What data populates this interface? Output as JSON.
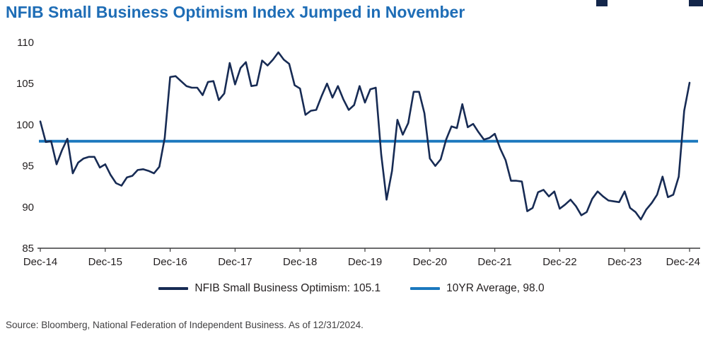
{
  "colors": {
    "title": "#1E6DB6",
    "series_line": "#172B54",
    "average_line": "#1B78BE",
    "axis": "#3A3A3C",
    "axis_text": "#231F20",
    "decor": "#13264A",
    "source_text": "#414042"
  },
  "legend": [
    {
      "label": "NFIB Small Business Optimism: 105.1",
      "color": "#172B54"
    },
    {
      "label": "10YR Average, 98.0",
      "color": "#1B78BE"
    }
  ],
  "source": "Source: Bloomberg, National Federation of Independent Business. As of 12/31/2024.",
  "chart_data": {
    "type": "line",
    "title": "NFIB Small Business Optimism Index Jumped in November",
    "xlabel": "",
    "ylabel": "",
    "ylim": [
      85,
      110
    ],
    "y_ticks": [
      85,
      90,
      95,
      100,
      105,
      110
    ],
    "x_tick_labels": [
      "Dec-14",
      "Dec-15",
      "Dec-16",
      "Dec-17",
      "Dec-18",
      "Dec-19",
      "Dec-20",
      "Dec-21",
      "Dec-22",
      "Dec-23",
      "Dec-24"
    ],
    "x_tick_interval": 12,
    "grid": false,
    "legend_position": "bottom",
    "series": [
      {
        "name": "NFIB Small Business Optimism",
        "current_value": 105.1,
        "color": "#172B54",
        "width": 2.6,
        "x_start": "Dec-14",
        "x_end": "Dec-24",
        "frequency": "monthly",
        "values": [
          100.4,
          97.9,
          98.0,
          95.2,
          96.9,
          98.3,
          94.1,
          95.4,
          95.9,
          96.1,
          96.1,
          94.8,
          95.2,
          93.9,
          92.9,
          92.6,
          93.6,
          93.8,
          94.5,
          94.6,
          94.4,
          94.1,
          94.9,
          98.4,
          105.8,
          105.9,
          105.3,
          104.7,
          104.5,
          104.5,
          103.6,
          105.2,
          105.3,
          103.0,
          103.8,
          107.5,
          104.9,
          106.9,
          107.6,
          104.7,
          104.8,
          107.8,
          107.2,
          107.9,
          108.8,
          107.9,
          107.4,
          104.8,
          104.4,
          101.2,
          101.7,
          101.8,
          103.5,
          105.0,
          103.3,
          104.7,
          103.1,
          101.8,
          102.4,
          104.7,
          102.7,
          104.3,
          104.5,
          96.4,
          90.9,
          94.4,
          100.6,
          98.8,
          100.2,
          104.0,
          104.0,
          101.4,
          95.9,
          95.0,
          95.8,
          98.2,
          99.8,
          99.6,
          102.5,
          99.7,
          100.1,
          99.1,
          98.2,
          98.4,
          98.9,
          97.1,
          95.7,
          93.2,
          93.2,
          93.1,
          89.5,
          89.9,
          91.8,
          92.1,
          91.3,
          91.9,
          89.8,
          90.3,
          90.9,
          90.1,
          89.0,
          89.4,
          91.0,
          91.9,
          91.3,
          90.8,
          90.7,
          90.6,
          91.9,
          89.9,
          89.4,
          88.5,
          89.7,
          90.5,
          91.5,
          93.7,
          91.2,
          91.5,
          93.7,
          101.7,
          105.1
        ]
      },
      {
        "name": "10YR Average",
        "type": "hline",
        "value": 98.0,
        "color": "#1B78BE",
        "width": 3.8
      }
    ]
  }
}
